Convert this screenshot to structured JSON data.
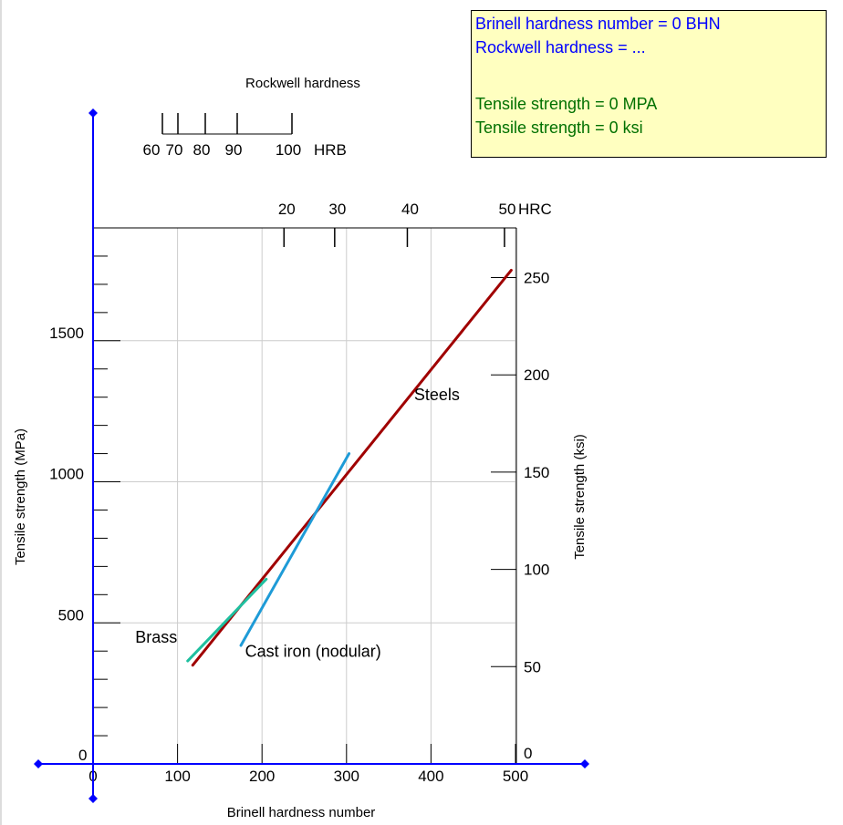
{
  "readout": {
    "brinell_line": "Brinell hardness number = 0 BHN",
    "rockwell_line": "Rockwell hardness = ...",
    "tensile_mpa_line": "Tensile strength = 0 MPA",
    "tensile_ksi_line": "Tensile strength = 0 ksi",
    "hardness_color": "#0000ff",
    "strength_color": "#007000"
  },
  "chart_data": {
    "type": "line",
    "xlabel": "Brinell hardness number",
    "ylabel": "Tensile strength (MPa)",
    "y2label": "Tensile  strength (ksi)",
    "xlim": [
      0,
      500
    ],
    "ylim": [
      0,
      1900
    ],
    "x_ticks": [
      0,
      100,
      200,
      300,
      400,
      500
    ],
    "y_ticks": [
      0,
      500,
      1000,
      1500
    ],
    "y2_ticks": [
      0,
      50,
      100,
      150,
      200,
      250
    ],
    "grid": true,
    "hrc_scale": {
      "ticks": [
        {
          "label": "20",
          "bhn": 226
        },
        {
          "label": "30",
          "bhn": 286
        },
        {
          "label": "40",
          "bhn": 372
        },
        {
          "label": "50",
          "bhn": 487
        }
      ],
      "unit": "HRC"
    },
    "hrb_scale": {
      "title": "Rockwell hardness",
      "ticks": [
        {
          "label": "60",
          "pos": 0
        },
        {
          "label": "70",
          "pos": 17
        },
        {
          "label": "80",
          "pos": 47
        },
        {
          "label": "90",
          "pos": 82
        },
        {
          "label": "100",
          "pos": 142
        }
      ],
      "unit": "HRB"
    },
    "series": [
      {
        "name": "Steels",
        "color": "#a00000",
        "x": [
          118,
          495
        ],
        "y": [
          350,
          1750
        ]
      },
      {
        "name": "Cast iron (nodular)",
        "color": "#1e9bd7",
        "x": [
          175,
          303
        ],
        "y": [
          420,
          1100
        ]
      },
      {
        "name": "Brass",
        "color": "#1fbf9f",
        "x": [
          112,
          205
        ],
        "y": [
          365,
          655
        ]
      }
    ],
    "annotations": [
      {
        "text": "Steels",
        "x": 380,
        "y": 1290
      },
      {
        "text": "Cast iron (nodular)",
        "x": 180,
        "y": 380
      },
      {
        "text": "Brass",
        "x": 50,
        "y": 430
      }
    ]
  }
}
